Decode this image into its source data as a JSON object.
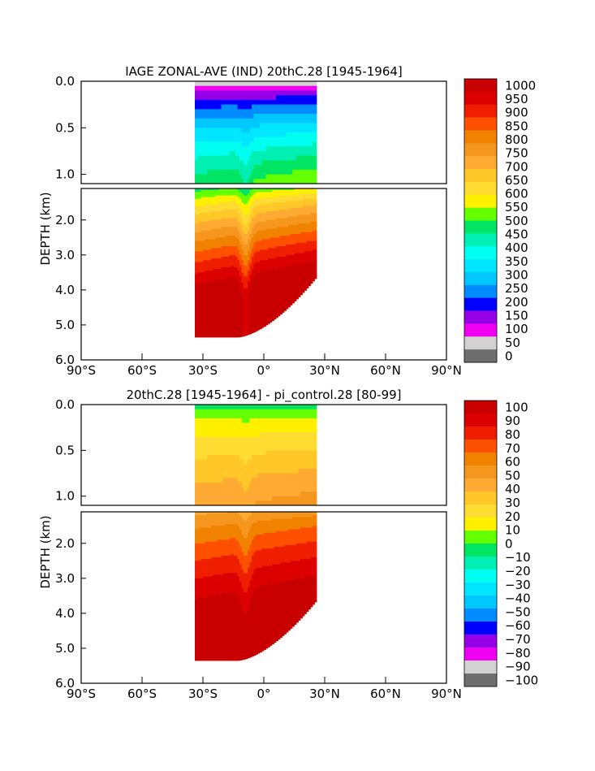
{
  "chart_data": [
    {
      "type": "heatmap",
      "title": "IAGE ZONAL-AVE (IND) 20thC.28 [1945-1964]",
      "ylabel": "DEPTH (km)",
      "xlabel": "",
      "x_ticks": [
        "90°S",
        "60°S",
        "30°S",
        "0°",
        "30°N",
        "60°N",
        "90°N"
      ],
      "y_ticks_upper": [
        "0.0",
        "0.5",
        "1.0"
      ],
      "y_ticks_lower": [
        "2.0",
        "3.0",
        "4.0",
        "5.0",
        "6.0"
      ],
      "x_range_lat": [
        -90,
        90
      ],
      "y_range_km": [
        0,
        6
      ],
      "data_lat_range": [
        -34,
        26
      ],
      "colorbar_labels": [
        "1000",
        "950",
        "900",
        "850",
        "800",
        "750",
        "700",
        "650",
        "600",
        "550",
        "500",
        "450",
        "400",
        "350",
        "300",
        "250",
        "200",
        "150",
        "100",
        "50",
        "0"
      ],
      "colorbar_colors": [
        "#c80000",
        "#dc0000",
        "#f01e00",
        "#ff5000",
        "#f08200",
        "#f5961e",
        "#ffaa32",
        "#ffc828",
        "#ffdc32",
        "#fff000",
        "#64ff00",
        "#00e664",
        "#00f0b4",
        "#00fff0",
        "#00e6ff",
        "#00c8ff",
        "#008cff",
        "#0000ff",
        "#9600e6",
        "#f000f0",
        "#d2d2d2",
        "#6e6e6e"
      ],
      "grid": false
    },
    {
      "type": "heatmap",
      "title": "20thC.28 [1945-1964] - pi_control.28 [80-99]",
      "ylabel": "DEPTH (km)",
      "xlabel": "",
      "x_ticks": [
        "90°S",
        "60°S",
        "30°S",
        "0°",
        "30°N",
        "60°N",
        "90°N"
      ],
      "y_ticks_upper": [
        "0.0",
        "0.5",
        "1.0"
      ],
      "y_ticks_lower": [
        "2.0",
        "3.0",
        "4.0",
        "5.0",
        "6.0"
      ],
      "x_range_lat": [
        -90,
        90
      ],
      "y_range_km": [
        0,
        6
      ],
      "data_lat_range": [
        -34,
        26
      ],
      "colorbar_labels": [
        "100",
        "90",
        "80",
        "70",
        "60",
        "50",
        "40",
        "30",
        "20",
        "10",
        "0",
        "−10",
        "−20",
        "−30",
        "−40",
        "−50",
        "−60",
        "−70",
        "−80",
        "−90",
        "−100"
      ],
      "colorbar_colors": [
        "#c80000",
        "#dc0000",
        "#f01e00",
        "#ff5000",
        "#f08200",
        "#f5961e",
        "#ffaa32",
        "#ffc828",
        "#ffdc32",
        "#fff000",
        "#64ff00",
        "#00e664",
        "#00f0b4",
        "#00fff0",
        "#00e6ff",
        "#00c8ff",
        "#008cff",
        "#0000ff",
        "#9600e6",
        "#f000f0",
        "#d2d2d2",
        "#6e6e6e"
      ],
      "grid": false
    }
  ]
}
